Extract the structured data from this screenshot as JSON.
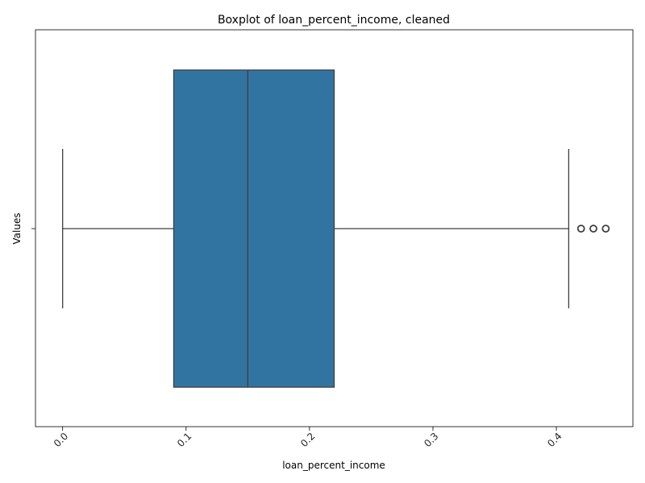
{
  "chart_data": {
    "type": "box",
    "title": "Boxplot of loan_percent_income, cleaned",
    "xlabel": "loan_percent_income",
    "ylabel": "Values",
    "xlim": [
      -0.022,
      0.462
    ],
    "x_ticks": [
      {
        "value": 0.0,
        "label": "0.0"
      },
      {
        "value": 0.1,
        "label": "0.1"
      },
      {
        "value": 0.2,
        "label": "0.2"
      },
      {
        "value": 0.3,
        "label": "0.3"
      },
      {
        "value": 0.4,
        "label": "0.4"
      }
    ],
    "y_ticks": [
      {
        "label": ""
      }
    ],
    "box": {
      "whisker_low": 0.0,
      "q1": 0.09,
      "median": 0.15,
      "q3": 0.22,
      "whisker_high": 0.41,
      "outliers": [
        0.42,
        0.43,
        0.44
      ]
    },
    "colors": {
      "box_fill": "#3274a1",
      "line": "#3f3f3f"
    },
    "tick_label_rotation": 45,
    "grid": false
  }
}
